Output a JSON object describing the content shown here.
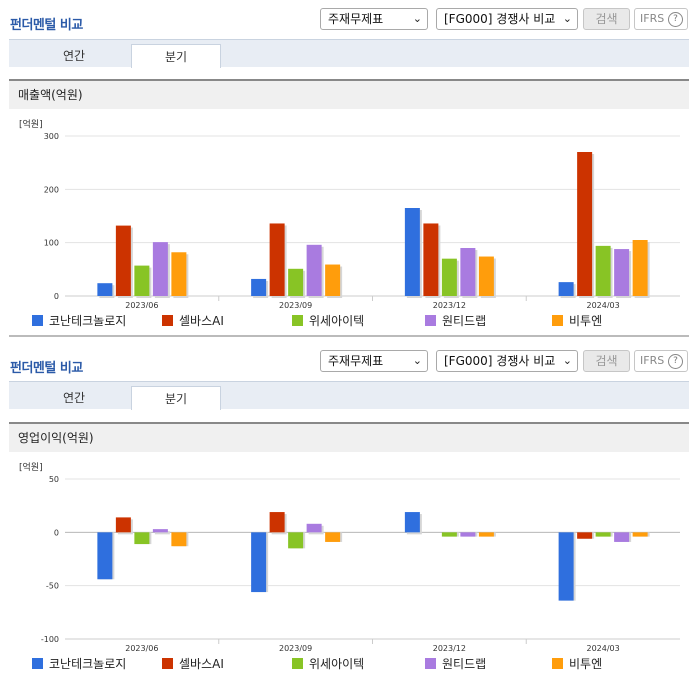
{
  "panels": [
    {
      "title": "펀더멘털 비교",
      "select_a": "주재무제표",
      "select_b": "[FG000] 경쟁사 비교",
      "search_label": "검색",
      "ifrs_label": "IFRS",
      "tabs": [
        "연간",
        "분기"
      ],
      "active_tab": "분기",
      "section_label": "매출액(억원)"
    },
    {
      "title": "펀더멘털 비교",
      "select_a": "주재무제표",
      "select_b": "[FG000] 경쟁사 비교",
      "search_label": "검색",
      "ifrs_label": "IFRS",
      "tabs": [
        "연간",
        "분기"
      ],
      "active_tab": "분기",
      "section_label": "영업이익(억원)"
    }
  ],
  "colors": {
    "series": [
      "#2f6fde",
      "#cc3300",
      "#88c425",
      "#a97be0",
      "#ff9d0c"
    ]
  },
  "chart_data": [
    {
      "type": "bar",
      "unit": "[억원]",
      "categories": [
        "2023/06",
        "2023/09",
        "2023/12",
        "2024/03"
      ],
      "ylim": [
        0,
        300
      ],
      "yticks": [
        0,
        100,
        200,
        300
      ],
      "grid": true,
      "legend_position": "bottom",
      "series": [
        {
          "name": "코난테크놀로지",
          "values": [
            24,
            32,
            165,
            26
          ]
        },
        {
          "name": "셀바스AI",
          "values": [
            132,
            136,
            136,
            270
          ]
        },
        {
          "name": "위세아이텍",
          "values": [
            57,
            51,
            70,
            94
          ]
        },
        {
          "name": "원티드랩",
          "values": [
            101,
            96,
            90,
            88
          ]
        },
        {
          "name": "비투엔",
          "values": [
            82,
            59,
            74,
            105
          ]
        }
      ]
    },
    {
      "type": "bar",
      "unit": "[억원]",
      "categories": [
        "2023/06",
        "2023/09",
        "2023/12",
        "2024/03"
      ],
      "ylim": [
        -100,
        50
      ],
      "yticks": [
        -100,
        -50,
        0,
        50
      ],
      "grid": true,
      "legend_position": "bottom",
      "series": [
        {
          "name": "코난테크놀로지",
          "values": [
            -44,
            -56,
            19,
            -64
          ]
        },
        {
          "name": "셀바스AI",
          "values": [
            14,
            19,
            0,
            -6
          ]
        },
        {
          "name": "위세아이텍",
          "values": [
            -11,
            -15,
            -4,
            -4
          ]
        },
        {
          "name": "원티드랩",
          "values": [
            3,
            8,
            -4,
            -9
          ]
        },
        {
          "name": "비투엔",
          "values": [
            -13,
            -9,
            -4,
            -4
          ]
        }
      ]
    }
  ]
}
